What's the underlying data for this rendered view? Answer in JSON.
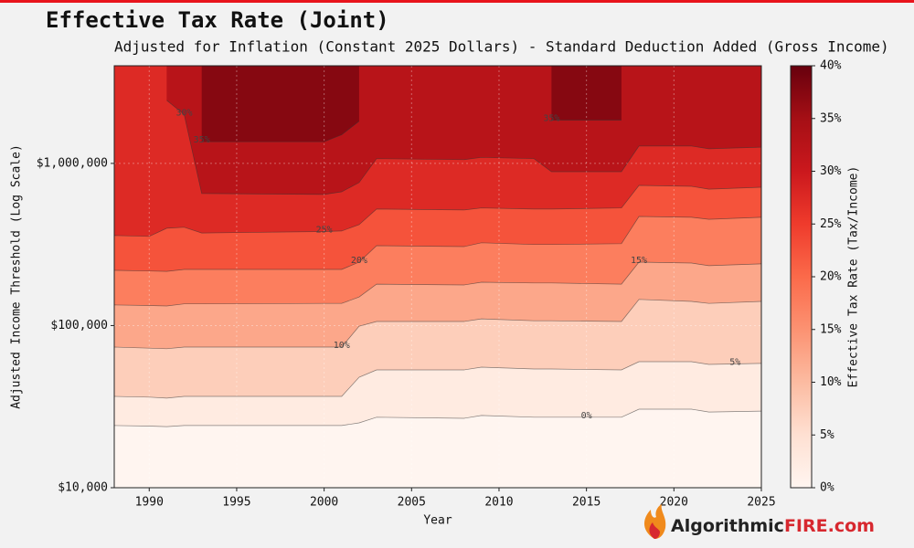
{
  "chart_data": {
    "type": "contour",
    "title": "Effective Tax Rate (Joint)",
    "subtitle": "Adjusted for Inflation (Constant 2025 Dollars) - Standard Deduction Added (Gross Income)",
    "x_label": "Year",
    "y_label": "Adjusted Income Threshold (Log Scale)",
    "log_y": true,
    "grid": true,
    "xlim": [
      1988,
      2025
    ],
    "xticks": [
      1990,
      1995,
      2000,
      2005,
      2010,
      2015,
      2020,
      2025
    ],
    "ylim": [
      10000,
      4000000
    ],
    "yticks": [
      {
        "value": 10000,
        "label": "$10,000"
      },
      {
        "value": 100000,
        "label": "$100,000"
      },
      {
        "value": 1000000,
        "label": "$1,000,000"
      }
    ],
    "x": [
      1988,
      1990,
      1991,
      1992,
      1993,
      2000,
      2001,
      2002,
      2003,
      2008,
      2009,
      2012,
      2013,
      2017,
      2018,
      2021,
      2022,
      2025
    ],
    "series": [
      {
        "name": "0%",
        "level": 0,
        "values": [
          24200,
          24000,
          23800,
          24200,
          24200,
          24200,
          24200,
          25100,
          27200,
          26800,
          27900,
          27200,
          27200,
          27200,
          30500,
          30500,
          29300,
          29700
        ]
      },
      {
        "name": "5%",
        "level": 5,
        "values": [
          36600,
          36200,
          35700,
          36600,
          36600,
          36600,
          36600,
          48000,
          53300,
          53300,
          55400,
          54000,
          54000,
          53300,
          59900,
          59900,
          57600,
          58400
        ]
      },
      {
        "name": "10%",
        "level": 10,
        "values": [
          73700,
          72500,
          72000,
          73700,
          73700,
          73700,
          73700,
          99000,
          106000,
          106000,
          110000,
          107000,
          107000,
          106000,
          145000,
          141000,
          137000,
          141000
        ]
      },
      {
        "name": "15%",
        "level": 15,
        "values": [
          134000,
          133000,
          132000,
          136000,
          136000,
          137000,
          137000,
          150000,
          180000,
          178000,
          185000,
          183000,
          183000,
          180000,
          246000,
          243000,
          234000,
          240000
        ]
      },
      {
        "name": "20%",
        "level": 20,
        "values": [
          219000,
          217000,
          216000,
          222000,
          222000,
          222000,
          222000,
          246000,
          311000,
          307000,
          324000,
          316000,
          316000,
          320000,
          471000,
          465000,
          452000,
          465000
        ]
      },
      {
        "name": "25%",
        "level": 25,
        "values": [
          359000,
          355000,
          398000,
          404000,
          372000,
          380000,
          383000,
          419000,
          523000,
          516000,
          531000,
          523000,
          523000,
          531000,
          732000,
          722000,
          694000,
          713000
        ]
      },
      {
        "name": "30%",
        "level": 30,
        "values": [
          null,
          null,
          2450000,
          2000000,
          652000,
          643000,
          668000,
          762000,
          1070000,
          1055000,
          1090000,
          1070000,
          889000,
          889000,
          1280000,
          1280000,
          1230000,
          1260000
        ]
      },
      {
        "name": "35%",
        "level": 35,
        "values": [
          null,
          null,
          null,
          null,
          1360000,
          1360000,
          1500000,
          1820000,
          null,
          null,
          null,
          null,
          1850000,
          1850000,
          null,
          null,
          null,
          null
        ]
      }
    ],
    "colorbar": {
      "label": "Effective Tax Rate (Tax/Income)",
      "lim": [
        0,
        40
      ],
      "ticks": [
        {
          "value": 0,
          "label": "0%"
        },
        {
          "value": 5,
          "label": "5%"
        },
        {
          "value": 10,
          "label": "10%"
        },
        {
          "value": 15,
          "label": "15%"
        },
        {
          "value": 20,
          "label": "20%"
        },
        {
          "value": 25,
          "label": "25%"
        },
        {
          "value": 30,
          "label": "30%"
        },
        {
          "value": 35,
          "label": "35%"
        },
        {
          "value": 40,
          "label": "40%"
        }
      ]
    }
  },
  "branding": {
    "logo_text": "Algorithmic",
    "logo_accent": "FIRE.com"
  }
}
